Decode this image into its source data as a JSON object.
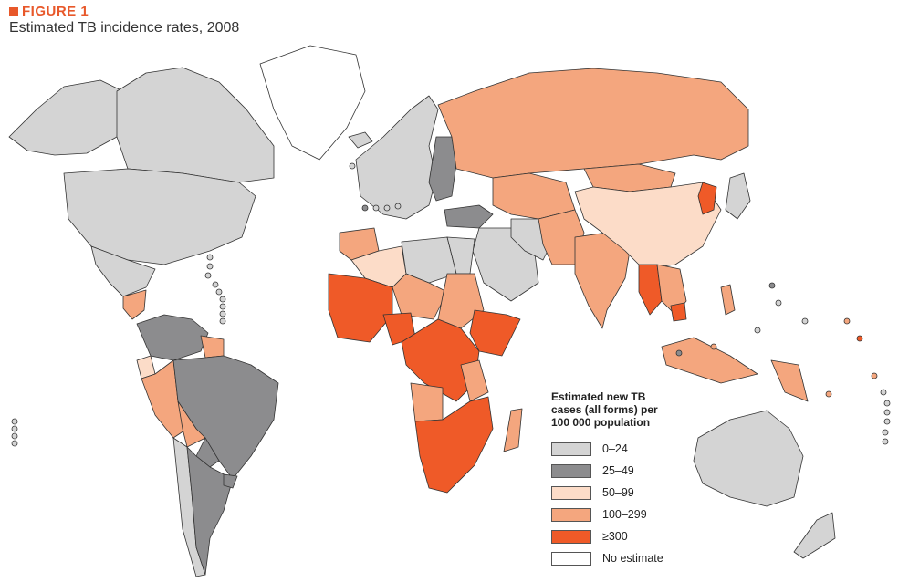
{
  "figure": {
    "label": "FIGURE 1",
    "title": "Estimated TB incidence rates, 2008"
  },
  "legend": {
    "title_lines": [
      "Estimated new TB",
      "cases (all forms) per",
      "100 000 population"
    ],
    "items": [
      {
        "key": "c0",
        "label": "0–24",
        "color": "#d4d4d4"
      },
      {
        "key": "c1",
        "label": "25–49",
        "color": "#8c8c8e"
      },
      {
        "key": "c2",
        "label": "50–99",
        "color": "#fcdcc8"
      },
      {
        "key": "c3",
        "label": "100–299",
        "color": "#f4a67e"
      },
      {
        "key": "c4",
        "label": "≥300",
        "color": "#ef5a28"
      },
      {
        "key": "none",
        "label": "No estimate",
        "color": "#ffffff"
      }
    ]
  },
  "map": {
    "border_color": "#333333",
    "regions": [
      {
        "name": "alaska",
        "category": "c0"
      },
      {
        "name": "canada",
        "category": "c0"
      },
      {
        "name": "greenland",
        "category": "none"
      },
      {
        "name": "usa",
        "category": "c0"
      },
      {
        "name": "mexico",
        "category": "c0"
      },
      {
        "name": "central-america",
        "category": "c3"
      },
      {
        "name": "venezuela-colombia",
        "category": "c1"
      },
      {
        "name": "guianas",
        "category": "c3"
      },
      {
        "name": "peru",
        "category": "c3"
      },
      {
        "name": "ecuador",
        "category": "c2"
      },
      {
        "name": "bolivia",
        "category": "c3"
      },
      {
        "name": "brazil",
        "category": "c1"
      },
      {
        "name": "paraguay",
        "category": "c1"
      },
      {
        "name": "chile",
        "category": "c0"
      },
      {
        "name": "argentina",
        "category": "c1"
      },
      {
        "name": "uruguay",
        "category": "c1"
      },
      {
        "name": "iceland",
        "category": "c0"
      },
      {
        "name": "western-europe",
        "category": "c0"
      },
      {
        "name": "eastern-europe",
        "category": "c1"
      },
      {
        "name": "russia",
        "category": "c3"
      },
      {
        "name": "central-asia",
        "category": "c3"
      },
      {
        "name": "turkey",
        "category": "c1"
      },
      {
        "name": "middle-east",
        "category": "c0"
      },
      {
        "name": "iran",
        "category": "c0"
      },
      {
        "name": "afghanistan-pakistan",
        "category": "c3"
      },
      {
        "name": "india",
        "category": "c3"
      },
      {
        "name": "china",
        "category": "c2"
      },
      {
        "name": "mongolia",
        "category": "c3"
      },
      {
        "name": "north-korea",
        "category": "c4"
      },
      {
        "name": "japan",
        "category": "c0"
      },
      {
        "name": "myanmar",
        "category": "c4"
      },
      {
        "name": "cambodia",
        "category": "c4"
      },
      {
        "name": "southeast-asia",
        "category": "c3"
      },
      {
        "name": "indonesia",
        "category": "c3"
      },
      {
        "name": "philippines",
        "category": "c3"
      },
      {
        "name": "papua-new-guinea",
        "category": "c3"
      },
      {
        "name": "australia",
        "category": "c0"
      },
      {
        "name": "new-zealand",
        "category": "c0"
      },
      {
        "name": "north-africa",
        "category": "c0"
      },
      {
        "name": "morocco",
        "category": "c3"
      },
      {
        "name": "algeria",
        "category": "c2"
      },
      {
        "name": "egypt",
        "category": "c0"
      },
      {
        "name": "west-africa",
        "category": "c4"
      },
      {
        "name": "niger-chad",
        "category": "c3"
      },
      {
        "name": "nigeria",
        "category": "c4"
      },
      {
        "name": "sudan",
        "category": "c3"
      },
      {
        "name": "ethiopia-somalia",
        "category": "c4"
      },
      {
        "name": "central-africa",
        "category": "c4"
      },
      {
        "name": "tanzania",
        "category": "c3"
      },
      {
        "name": "angola",
        "category": "c3"
      },
      {
        "name": "southern-africa",
        "category": "c4"
      },
      {
        "name": "madagascar",
        "category": "c3"
      }
    ]
  }
}
